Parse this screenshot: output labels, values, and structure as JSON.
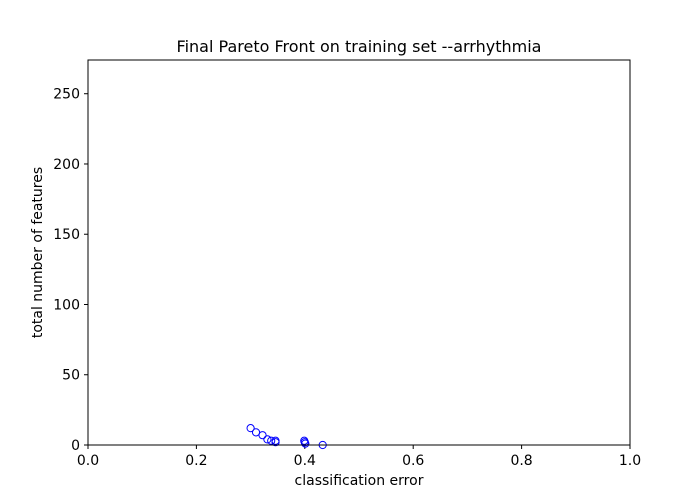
{
  "chart_data": {
    "type": "scatter",
    "title": "Final Pareto Front on training set --arrhythmia",
    "xlabel": "classification error",
    "ylabel": "total number of features",
    "xlim": [
      0.0,
      1.0
    ],
    "ylim": [
      0,
      274
    ],
    "grid": false,
    "marker": "hollow-circle",
    "marker_color": "#0000ff",
    "x_ticks": [
      0.0,
      0.2,
      0.4,
      0.6,
      0.8,
      1.0
    ],
    "x_tick_labels": [
      "0.0",
      "0.2",
      "0.4",
      "0.6",
      "0.8",
      "1.0"
    ],
    "y_ticks": [
      0,
      50,
      100,
      150,
      200,
      250
    ],
    "y_tick_labels": [
      "0",
      "50",
      "100",
      "150",
      "200",
      "250"
    ],
    "points": [
      {
        "x": 0.3,
        "y": 12
      },
      {
        "x": 0.31,
        "y": 9
      },
      {
        "x": 0.322,
        "y": 7
      },
      {
        "x": 0.331,
        "y": 4
      },
      {
        "x": 0.338,
        "y": 3
      },
      {
        "x": 0.346,
        "y": 2
      },
      {
        "x": 0.346,
        "y": 3
      },
      {
        "x": 0.399,
        "y": 3
      },
      {
        "x": 0.4,
        "y": 2
      },
      {
        "x": 0.401,
        "y": 1
      },
      {
        "x": 0.433,
        "y": 0
      }
    ]
  }
}
